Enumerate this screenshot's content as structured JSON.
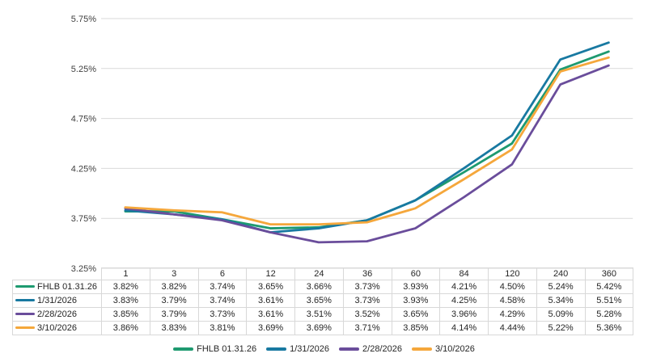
{
  "chart_data": {
    "type": "line",
    "title": "",
    "categories": [
      "1",
      "3",
      "6",
      "12",
      "24",
      "36",
      "60",
      "84",
      "120",
      "240",
      "360"
    ],
    "series": [
      {
        "name": "FHLB 01.31.26",
        "color": "#1E9A70",
        "values": [
          3.82,
          3.82,
          3.74,
          3.65,
          3.66,
          3.73,
          3.93,
          4.21,
          4.5,
          5.24,
          5.42
        ]
      },
      {
        "name": "1/31/2026",
        "color": "#1879A1",
        "values": [
          3.83,
          3.79,
          3.74,
          3.61,
          3.65,
          3.73,
          3.93,
          4.25,
          4.58,
          5.34,
          5.51
        ]
      },
      {
        "name": "2/28/2026",
        "color": "#6A4D9B",
        "values": [
          3.85,
          3.79,
          3.73,
          3.61,
          3.51,
          3.52,
          3.65,
          3.96,
          4.29,
          5.09,
          5.28
        ]
      },
      {
        "name": "3/10/2026",
        "color": "#F5A73B",
        "values": [
          3.86,
          3.83,
          3.81,
          3.69,
          3.69,
          3.71,
          3.85,
          4.14,
          4.44,
          5.22,
          5.36
        ]
      }
    ],
    "y_axis": {
      "ticks": [
        "5.75%",
        "5.25%",
        "4.75%",
        "4.25%",
        "3.75%",
        "3.25%"
      ],
      "min": 3.25,
      "max": 5.75
    },
    "value_suffix": "%",
    "grid": true,
    "gridline_color": "#d9d9d9",
    "legend_position": "bottom",
    "data_table_shown": true
  }
}
